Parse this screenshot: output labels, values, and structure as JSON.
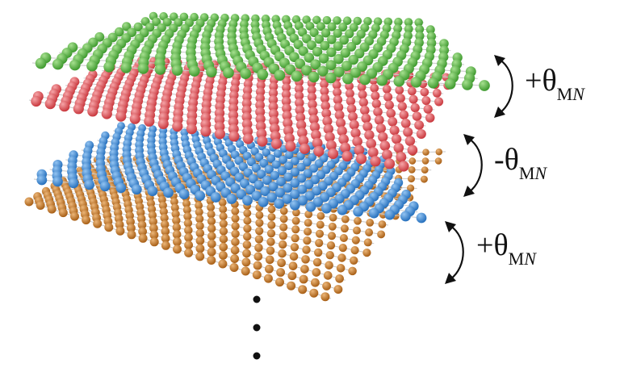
{
  "layers": [
    {
      "name": "layer-1",
      "color": "#5cb845",
      "highlight": "#a6e08f"
    },
    {
      "name": "layer-2",
      "color": "#e55a5f",
      "highlight": "#f6a4a7"
    },
    {
      "name": "layer-3",
      "color": "#3f8fdb",
      "highlight": "#93c4f2"
    },
    {
      "name": "layer-4",
      "color": "#c97a28",
      "highlight": "#ecb678"
    }
  ],
  "labels": [
    {
      "sign": "+",
      "theta": "θ",
      "sub_upright": "M",
      "sub_italic": "N"
    },
    {
      "sign": "-",
      "theta": "θ",
      "sub_upright": "M",
      "sub_italic": "N"
    },
    {
      "sign": "+",
      "theta": "θ",
      "sub_upright": "M",
      "sub_italic": "N"
    }
  ],
  "continuation": "⋮",
  "icons": [
    "rotation-arrow-icon",
    "ellipsis-dots-icon"
  ]
}
